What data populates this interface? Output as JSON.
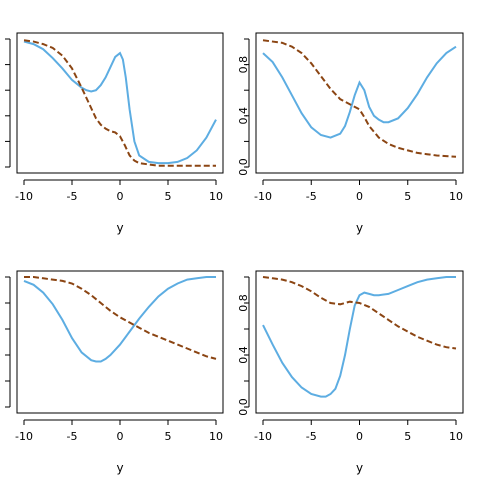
{
  "chart_data": [
    {
      "type": "line",
      "xlabel": "y",
      "xlim": [
        -10,
        10
      ],
      "ylim": [
        0,
        1
      ],
      "xticks": [
        "-10",
        "-5",
        "0",
        "5",
        "10"
      ],
      "yticks": [],
      "series": [
        {
          "style": "solid",
          "color": "#5DADE2",
          "x": [
            -10,
            -9,
            -8,
            -7,
            -6,
            -5,
            -4,
            -3.5,
            -3,
            -2.5,
            -2,
            -1.5,
            -1,
            -0.5,
            0,
            0.3,
            0.6,
            1,
            1.5,
            2,
            3,
            4,
            5,
            6,
            7,
            8,
            9,
            10
          ],
          "y": [
            0.98,
            0.96,
            0.92,
            0.85,
            0.77,
            0.68,
            0.62,
            0.6,
            0.59,
            0.6,
            0.64,
            0.7,
            0.78,
            0.86,
            0.89,
            0.84,
            0.7,
            0.45,
            0.2,
            0.09,
            0.04,
            0.03,
            0.03,
            0.04,
            0.07,
            0.13,
            0.23,
            0.37
          ]
        },
        {
          "style": "dashed",
          "color": "#8B4513",
          "x": [
            -10,
            -9,
            -8,
            -7,
            -6,
            -5,
            -4,
            -3,
            -2.5,
            -2,
            -1.5,
            -1,
            -0.5,
            0,
            0.5,
            1,
            1.5,
            2,
            3,
            4,
            5,
            6,
            7,
            8,
            9,
            10
          ],
          "y": [
            0.99,
            0.98,
            0.96,
            0.93,
            0.87,
            0.77,
            0.62,
            0.46,
            0.38,
            0.33,
            0.3,
            0.28,
            0.27,
            0.24,
            0.17,
            0.09,
            0.05,
            0.03,
            0.02,
            0.01,
            0.01,
            0.01,
            0.01,
            0.01,
            0.01,
            0.01
          ]
        }
      ]
    },
    {
      "type": "line",
      "xlabel": "y",
      "xlim": [
        -10,
        10
      ],
      "ylim": [
        0,
        1
      ],
      "xticks": [
        "-10",
        "-5",
        "0",
        "5",
        "10"
      ],
      "yticks": [
        "0.0",
        "0.4",
        "0.8"
      ],
      "series": [
        {
          "style": "solid",
          "color": "#5DADE2",
          "x": [
            -10,
            -9,
            -8,
            -7,
            -6,
            -5,
            -4,
            -3,
            -2,
            -1.5,
            -1,
            -0.5,
            0,
            0.5,
            1,
            1.5,
            2,
            2.5,
            3,
            4,
            5,
            6,
            7,
            8,
            9,
            10
          ],
          "y": [
            0.89,
            0.82,
            0.7,
            0.56,
            0.42,
            0.31,
            0.25,
            0.23,
            0.26,
            0.32,
            0.43,
            0.56,
            0.66,
            0.6,
            0.47,
            0.4,
            0.37,
            0.35,
            0.35,
            0.38,
            0.46,
            0.57,
            0.7,
            0.81,
            0.89,
            0.94
          ]
        },
        {
          "style": "dashed",
          "color": "#8B4513",
          "x": [
            -10,
            -9,
            -8,
            -7,
            -6,
            -5,
            -4,
            -3,
            -2,
            -1,
            0,
            0.5,
            1,
            2,
            3,
            4,
            5,
            6,
            7,
            8,
            9,
            10
          ],
          "y": [
            0.99,
            0.98,
            0.97,
            0.94,
            0.89,
            0.81,
            0.71,
            0.61,
            0.53,
            0.49,
            0.45,
            0.39,
            0.32,
            0.23,
            0.18,
            0.15,
            0.13,
            0.11,
            0.1,
            0.09,
            0.085,
            0.08
          ]
        }
      ]
    },
    {
      "type": "line",
      "xlabel": "y",
      "xlim": [
        -10,
        10
      ],
      "ylim": [
        0,
        1
      ],
      "xticks": [
        "-10",
        "-5",
        "0",
        "5",
        "10"
      ],
      "yticks": [],
      "series": [
        {
          "style": "solid",
          "color": "#5DADE2",
          "x": [
            -10,
            -9,
            -8,
            -7,
            -6,
            -5,
            -4,
            -3,
            -2.5,
            -2,
            -1.5,
            -1,
            0,
            1,
            2,
            3,
            4,
            5,
            6,
            7,
            8,
            9,
            10
          ],
          "y": [
            0.97,
            0.94,
            0.88,
            0.79,
            0.67,
            0.53,
            0.42,
            0.36,
            0.35,
            0.35,
            0.37,
            0.4,
            0.48,
            0.58,
            0.68,
            0.77,
            0.85,
            0.91,
            0.95,
            0.98,
            0.99,
            1.0,
            1.0
          ]
        },
        {
          "style": "dashed",
          "color": "#8B4513",
          "x": [
            -10,
            -9,
            -8,
            -7,
            -6,
            -5,
            -4,
            -3,
            -2,
            -1,
            0,
            1,
            2,
            3,
            4,
            5,
            6,
            7,
            8,
            9,
            10
          ],
          "y": [
            1.0,
            1.0,
            0.99,
            0.98,
            0.97,
            0.95,
            0.91,
            0.86,
            0.8,
            0.74,
            0.69,
            0.65,
            0.61,
            0.57,
            0.54,
            0.51,
            0.48,
            0.45,
            0.42,
            0.39,
            0.37
          ]
        }
      ]
    },
    {
      "type": "line",
      "xlabel": "y",
      "xlim": [
        -10,
        10
      ],
      "ylim": [
        0,
        1
      ],
      "xticks": [
        "-10",
        "-5",
        "0",
        "5",
        "10"
      ],
      "yticks": [
        "0.0",
        "0.4",
        "0.8"
      ],
      "series": [
        {
          "style": "solid",
          "color": "#5DADE2",
          "x": [
            -10,
            -9,
            -8,
            -7,
            -6,
            -5,
            -4,
            -3.5,
            -3,
            -2.5,
            -2,
            -1.5,
            -1,
            -0.5,
            0,
            0.5,
            1,
            1.5,
            2,
            3,
            4,
            5,
            6,
            7,
            8,
            9,
            10
          ],
          "y": [
            0.63,
            0.48,
            0.34,
            0.23,
            0.15,
            0.1,
            0.08,
            0.08,
            0.1,
            0.14,
            0.24,
            0.4,
            0.6,
            0.78,
            0.86,
            0.88,
            0.87,
            0.86,
            0.86,
            0.87,
            0.9,
            0.93,
            0.96,
            0.98,
            0.99,
            1.0,
            1.0
          ]
        },
        {
          "style": "dashed",
          "color": "#8B4513",
          "x": [
            -10,
            -9,
            -8,
            -7,
            -6,
            -5,
            -4,
            -3,
            -2,
            -1,
            0,
            1,
            2,
            3,
            4,
            5,
            6,
            7,
            8,
            9,
            10
          ],
          "y": [
            1.0,
            0.99,
            0.98,
            0.96,
            0.93,
            0.89,
            0.84,
            0.8,
            0.79,
            0.81,
            0.8,
            0.77,
            0.72,
            0.67,
            0.62,
            0.58,
            0.54,
            0.51,
            0.48,
            0.46,
            0.45
          ]
        }
      ]
    }
  ]
}
